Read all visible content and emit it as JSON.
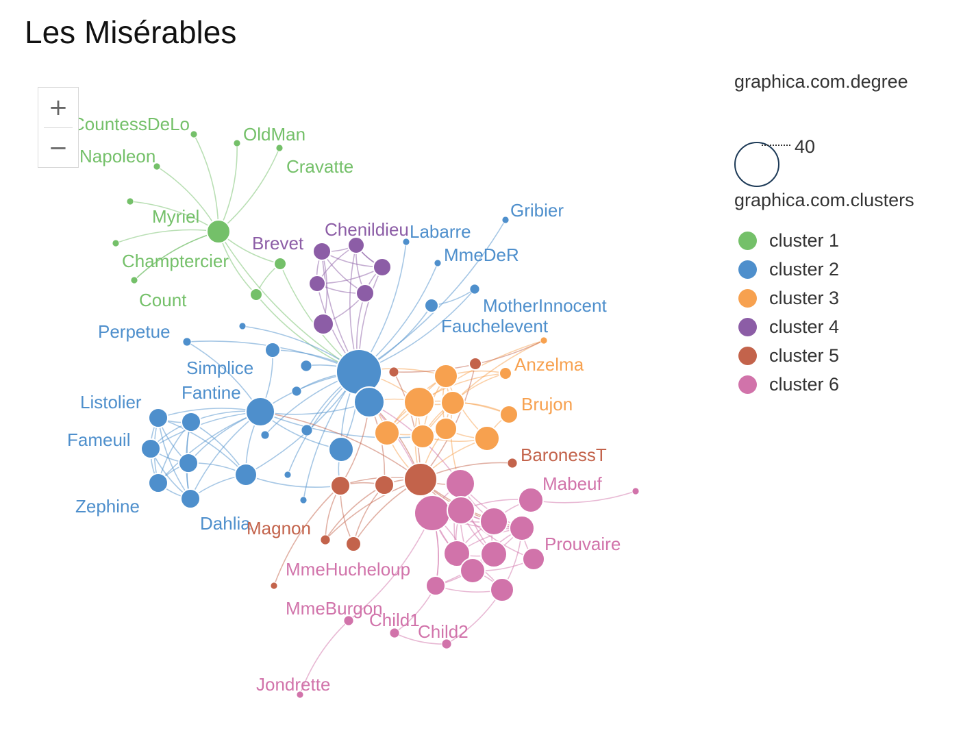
{
  "title": "Les Misérables",
  "zoom": {
    "in_label": "+",
    "out_label": "−"
  },
  "legend": {
    "size_title": "graphica.com.degree",
    "size_value": "40",
    "cluster_title": "graphica.com.clusters",
    "clusters": [
      {
        "label": "cluster 1",
        "color": "#74c069"
      },
      {
        "label": "cluster 2",
        "color": "#4e8fcc"
      },
      {
        "label": "cluster 3",
        "color": "#f7a14f"
      },
      {
        "label": "cluster 4",
        "color": "#8c5da6"
      },
      {
        "label": "cluster 5",
        "color": "#c3634b"
      },
      {
        "label": "cluster 6",
        "color": "#d173aa"
      }
    ]
  },
  "graph": {
    "nodes": [
      {
        "id": "g_hub",
        "c": 0,
        "label": ""
      },
      {
        "id": "g_cd",
        "c": 0,
        "label": "CountessDeLo"
      },
      {
        "id": "g_om",
        "c": 0,
        "label": "OldMan"
      },
      {
        "id": "g_cr",
        "c": 0,
        "label": "Cravatte"
      },
      {
        "id": "g_np",
        "c": 0,
        "label": "Napoleon"
      },
      {
        "id": "g_my",
        "c": 0,
        "label": "Myriel"
      },
      {
        "id": "g_x1",
        "c": 0,
        "label": ""
      },
      {
        "id": "g_ch",
        "c": 0,
        "label": "Champtercier"
      },
      {
        "id": "g_co",
        "c": 0,
        "label": "Count"
      },
      {
        "id": "g_a",
        "c": 0,
        "label": ""
      },
      {
        "id": "g_b",
        "c": 0,
        "label": ""
      },
      {
        "id": "p1",
        "c": 3,
        "label": ""
      },
      {
        "id": "p2",
        "c": 3,
        "label": ""
      },
      {
        "id": "p3",
        "c": 3,
        "label": ""
      },
      {
        "id": "p4",
        "c": 3,
        "label": ""
      },
      {
        "id": "p5",
        "c": 3,
        "label": ""
      },
      {
        "id": "p6",
        "c": 3,
        "label": "Brevet"
      },
      {
        "id": "p7",
        "c": 3,
        "label": "Chenildieu"
      },
      {
        "id": "b_hub",
        "c": 1,
        "label": ""
      },
      {
        "id": "b_2",
        "c": 1,
        "label": ""
      },
      {
        "id": "b_fan",
        "c": 1,
        "label": "Fantine"
      },
      {
        "id": "b_mid",
        "c": 1,
        "label": ""
      },
      {
        "id": "b_sim",
        "c": 1,
        "label": "Simplice"
      },
      {
        "id": "b_perp",
        "c": 1,
        "label": "Perpetue"
      },
      {
        "id": "b_s1",
        "c": 1,
        "label": ""
      },
      {
        "id": "b_s2",
        "c": 1,
        "label": ""
      },
      {
        "id": "b_s3",
        "c": 1,
        "label": ""
      },
      {
        "id": "b_s4",
        "c": 1,
        "label": ""
      },
      {
        "id": "b_s5",
        "c": 1,
        "label": ""
      },
      {
        "id": "b_s6",
        "c": 1,
        "label": ""
      },
      {
        "id": "b_s7",
        "c": 1,
        "label": ""
      },
      {
        "id": "b_lis",
        "c": 1,
        "label": "Listolier"
      },
      {
        "id": "b_t1",
        "c": 1,
        "label": ""
      },
      {
        "id": "b_fam",
        "c": 1,
        "label": "Fameuil"
      },
      {
        "id": "b_t2",
        "c": 1,
        "label": ""
      },
      {
        "id": "b_zep",
        "c": 1,
        "label": "Zephine"
      },
      {
        "id": "b_dah",
        "c": 1,
        "label": "Dahlia"
      },
      {
        "id": "b_t3",
        "c": 1,
        "label": ""
      },
      {
        "id": "b_fau",
        "c": 1,
        "label": "Fauchelevent"
      },
      {
        "id": "b_mi",
        "c": 1,
        "label": "MotherInnocent"
      },
      {
        "id": "b_mdr",
        "c": 1,
        "label": "MmeDeR"
      },
      {
        "id": "b_lab",
        "c": 1,
        "label": "Labarre"
      },
      {
        "id": "b_gri",
        "c": 1,
        "label": "Gribier"
      },
      {
        "id": "o1",
        "c": 2,
        "label": ""
      },
      {
        "id": "o2",
        "c": 2,
        "label": ""
      },
      {
        "id": "o3",
        "c": 2,
        "label": ""
      },
      {
        "id": "o4",
        "c": 2,
        "label": ""
      },
      {
        "id": "o5",
        "c": 2,
        "label": ""
      },
      {
        "id": "o6",
        "c": 2,
        "label": ""
      },
      {
        "id": "o7",
        "c": 2,
        "label": ""
      },
      {
        "id": "o8",
        "c": 2,
        "label": "Brujon"
      },
      {
        "id": "o9",
        "c": 2,
        "label": "Anzelma"
      },
      {
        "id": "o10",
        "c": 2,
        "label": ""
      },
      {
        "id": "r_hub",
        "c": 4,
        "label": ""
      },
      {
        "id": "r2",
        "c": 4,
        "label": ""
      },
      {
        "id": "r3",
        "c": 4,
        "label": ""
      },
      {
        "id": "r4",
        "c": 4,
        "label": ""
      },
      {
        "id": "r5",
        "c": 4,
        "label": ""
      },
      {
        "id": "r6",
        "c": 4,
        "label": ""
      },
      {
        "id": "r7",
        "c": 4,
        "label": ""
      },
      {
        "id": "r_bar",
        "c": 4,
        "label": "BaronessT"
      },
      {
        "id": "r_mag",
        "c": 4,
        "label": "Magnon"
      },
      {
        "id": "k1",
        "c": 5,
        "label": ""
      },
      {
        "id": "k2",
        "c": 5,
        "label": ""
      },
      {
        "id": "k3",
        "c": 5,
        "label": ""
      },
      {
        "id": "k4",
        "c": 5,
        "label": "Mabeuf"
      },
      {
        "id": "k5",
        "c": 5,
        "label": ""
      },
      {
        "id": "k6",
        "c": 5,
        "label": ""
      },
      {
        "id": "k7",
        "c": 5,
        "label": ""
      },
      {
        "id": "k8",
        "c": 5,
        "label": ""
      },
      {
        "id": "k9",
        "c": 5,
        "label": ""
      },
      {
        "id": "k10",
        "c": 5,
        "label": "Prouvaire"
      },
      {
        "id": "k11",
        "c": 5,
        "label": ""
      },
      {
        "id": "k12",
        "c": 5,
        "label": ""
      },
      {
        "id": "k13",
        "c": 5,
        "label": ""
      },
      {
        "id": "k_ext",
        "c": 5,
        "label": ""
      },
      {
        "id": "k_mhu",
        "c": 5,
        "label": "MmeHucheloup"
      },
      {
        "id": "k_mbu",
        "c": 5,
        "label": "MmeBurgon"
      },
      {
        "id": "k_c1",
        "c": 5,
        "label": "Child1"
      },
      {
        "id": "k_c2",
        "c": 5,
        "label": "Child2"
      },
      {
        "id": "k_jon",
        "c": 5,
        "label": "Jondrette"
      }
    ],
    "edges": [
      [
        "g_hub",
        "g_cd"
      ],
      [
        "g_hub",
        "g_om"
      ],
      [
        "g_hub",
        "g_cr"
      ],
      [
        "g_hub",
        "g_np"
      ],
      [
        "g_hub",
        "g_my"
      ],
      [
        "g_hub",
        "g_x1"
      ],
      [
        "g_hub",
        "g_ch"
      ],
      [
        "g_hub",
        "g_co"
      ],
      [
        "g_hub",
        "g_a"
      ],
      [
        "g_hub",
        "g_b"
      ],
      [
        "g_hub",
        "b_hub"
      ],
      [
        "g_a",
        "b_hub"
      ],
      [
        "g_b",
        "b_hub"
      ],
      [
        "g_a",
        "g_b"
      ],
      [
        "p1",
        "p2"
      ],
      [
        "p1",
        "p3"
      ],
      [
        "p1",
        "p4"
      ],
      [
        "p1",
        "p5"
      ],
      [
        "p2",
        "p3"
      ],
      [
        "p2",
        "p4"
      ],
      [
        "p2",
        "p5"
      ],
      [
        "p3",
        "p4"
      ],
      [
        "p3",
        "p5"
      ],
      [
        "p4",
        "p5"
      ],
      [
        "p1",
        "b_hub"
      ],
      [
        "p2",
        "b_hub"
      ],
      [
        "p3",
        "b_hub"
      ],
      [
        "p4",
        "b_hub"
      ],
      [
        "p5",
        "b_hub"
      ],
      [
        "p6",
        "p1"
      ],
      [
        "p7",
        "p2"
      ],
      [
        "p6",
        "p5"
      ],
      [
        "p7",
        "p4"
      ],
      [
        "b_hub",
        "b_2"
      ],
      [
        "b_hub",
        "b_fan"
      ],
      [
        "b_hub",
        "b_mid"
      ],
      [
        "b_hub",
        "b_sim"
      ],
      [
        "b_hub",
        "b_perp"
      ],
      [
        "b_hub",
        "b_s1"
      ],
      [
        "b_hub",
        "b_s2"
      ],
      [
        "b_hub",
        "b_s3"
      ],
      [
        "b_hub",
        "b_s4"
      ],
      [
        "b_hub",
        "b_s5"
      ],
      [
        "b_hub",
        "b_s6"
      ],
      [
        "b_hub",
        "b_s7"
      ],
      [
        "b_hub",
        "b_fau"
      ],
      [
        "b_hub",
        "b_mi"
      ],
      [
        "b_hub",
        "b_mdr"
      ],
      [
        "b_hub",
        "b_lab"
      ],
      [
        "b_hub",
        "b_gri"
      ],
      [
        "b_fau",
        "b_mi"
      ],
      [
        "b_fan",
        "b_sim"
      ],
      [
        "b_fan",
        "b_perp"
      ],
      [
        "b_fan",
        "b_lis"
      ],
      [
        "b_fan",
        "b_t1"
      ],
      [
        "b_fan",
        "b_fam"
      ],
      [
        "b_fan",
        "b_t2"
      ],
      [
        "b_fan",
        "b_zep"
      ],
      [
        "b_fan",
        "b_dah"
      ],
      [
        "b_fan",
        "b_t3"
      ],
      [
        "b_fan",
        "b_2"
      ],
      [
        "b_fan",
        "b_mid"
      ],
      [
        "b_lis",
        "b_t1"
      ],
      [
        "b_lis",
        "b_fam"
      ],
      [
        "b_lis",
        "b_t2"
      ],
      [
        "b_lis",
        "b_zep"
      ],
      [
        "b_lis",
        "b_dah"
      ],
      [
        "b_t1",
        "b_fam"
      ],
      [
        "b_t1",
        "b_t2"
      ],
      [
        "b_t1",
        "b_zep"
      ],
      [
        "b_t1",
        "b_dah"
      ],
      [
        "b_fam",
        "b_t2"
      ],
      [
        "b_fam",
        "b_zep"
      ],
      [
        "b_fam",
        "b_dah"
      ],
      [
        "b_t2",
        "b_zep"
      ],
      [
        "b_t2",
        "b_dah"
      ],
      [
        "b_zep",
        "b_dah"
      ],
      [
        "b_t3",
        "b_t1"
      ],
      [
        "b_t3",
        "b_t2"
      ],
      [
        "b_t3",
        "b_lis"
      ],
      [
        "b_t3",
        "b_dah"
      ],
      [
        "b_t3",
        "b_hub"
      ],
      [
        "b_mid",
        "b_hub"
      ],
      [
        "b_mid",
        "r3"
      ],
      [
        "o1",
        "o2"
      ],
      [
        "o1",
        "o3"
      ],
      [
        "o1",
        "o4"
      ],
      [
        "o1",
        "o5"
      ],
      [
        "o1",
        "o6"
      ],
      [
        "o1",
        "o7"
      ],
      [
        "o2",
        "o3"
      ],
      [
        "o2",
        "o4"
      ],
      [
        "o2",
        "o5"
      ],
      [
        "o3",
        "o5"
      ],
      [
        "o3",
        "o6"
      ],
      [
        "o4",
        "o6"
      ],
      [
        "o5",
        "o7"
      ],
      [
        "o6",
        "o7"
      ],
      [
        "o8",
        "o2"
      ],
      [
        "o8",
        "o3"
      ],
      [
        "o8",
        "o7"
      ],
      [
        "o9",
        "o1"
      ],
      [
        "o9",
        "o2"
      ],
      [
        "o9",
        "o3"
      ],
      [
        "o10",
        "o5"
      ],
      [
        "o1",
        "b_hub"
      ],
      [
        "o2",
        "b_hub"
      ],
      [
        "o4",
        "b_2"
      ],
      [
        "o2",
        "b_2"
      ],
      [
        "o6",
        "r_hub"
      ],
      [
        "o4",
        "r_hub"
      ],
      [
        "o2",
        "r_hub"
      ],
      [
        "o7",
        "r_hub"
      ],
      [
        "o3",
        "k1"
      ],
      [
        "o10",
        "o4"
      ],
      [
        "b_fan",
        "o5"
      ],
      [
        "r_hub",
        "r2"
      ],
      [
        "r_hub",
        "r3"
      ],
      [
        "r_hub",
        "r4"
      ],
      [
        "r_hub",
        "r5"
      ],
      [
        "r_hub",
        "r6"
      ],
      [
        "r_hub",
        "r7"
      ],
      [
        "r2",
        "r3"
      ],
      [
        "r2",
        "r4"
      ],
      [
        "r2",
        "r5"
      ],
      [
        "r3",
        "r4"
      ],
      [
        "r3",
        "r5"
      ],
      [
        "r3",
        "r_mag"
      ],
      [
        "r_bar",
        "r_hub"
      ],
      [
        "r_hub",
        "b_2"
      ],
      [
        "r2",
        "b_2"
      ],
      [
        "r3",
        "b_2"
      ],
      [
        "r_hub",
        "k1"
      ],
      [
        "r_hub",
        "k2"
      ],
      [
        "r_hub",
        "k3"
      ],
      [
        "r_hub",
        "k5"
      ],
      [
        "r_hub",
        "k6"
      ],
      [
        "r_hub",
        "b_fan"
      ],
      [
        "b_t3",
        "r3"
      ],
      [
        "r6",
        "o10"
      ],
      [
        "k1",
        "k2"
      ],
      [
        "k1",
        "k3"
      ],
      [
        "k1",
        "k5"
      ],
      [
        "k1",
        "k6"
      ],
      [
        "k1",
        "k7"
      ],
      [
        "k1",
        "k8"
      ],
      [
        "k1",
        "k9"
      ],
      [
        "k2",
        "k3"
      ],
      [
        "k2",
        "k5"
      ],
      [
        "k2",
        "k6"
      ],
      [
        "k2",
        "k7"
      ],
      [
        "k2",
        "k9"
      ],
      [
        "k3",
        "k5"
      ],
      [
        "k3",
        "k6"
      ],
      [
        "k3",
        "k7"
      ],
      [
        "k3",
        "k10"
      ],
      [
        "k3",
        "k8"
      ],
      [
        "k5",
        "k6"
      ],
      [
        "k5",
        "k7"
      ],
      [
        "k5",
        "k8"
      ],
      [
        "k6",
        "k7"
      ],
      [
        "k6",
        "k9"
      ],
      [
        "k6",
        "k10"
      ],
      [
        "k7",
        "k8"
      ],
      [
        "k7",
        "k9"
      ],
      [
        "k8",
        "k9"
      ],
      [
        "k9",
        "k10"
      ],
      [
        "k4",
        "k5"
      ],
      [
        "k4",
        "k3"
      ],
      [
        "k4",
        "k_ext"
      ],
      [
        "k11",
        "k12"
      ],
      [
        "k11",
        "k2"
      ],
      [
        "k11",
        "k6"
      ],
      [
        "k12",
        "k7"
      ],
      [
        "k12",
        "k13"
      ],
      [
        "k13",
        "k2"
      ],
      [
        "k13",
        "k9"
      ],
      [
        "k_mhu",
        "k2"
      ],
      [
        "k_mbu",
        "k2"
      ],
      [
        "k_mbu",
        "k_jon"
      ],
      [
        "k_c1",
        "k_c2"
      ],
      [
        "k_c1",
        "k_mhu"
      ],
      [
        "k_c2",
        "k12"
      ],
      [
        "k11",
        "k8"
      ],
      [
        "k12",
        "k6"
      ],
      [
        "k13",
        "k9"
      ],
      [
        "k1",
        "b_2"
      ],
      [
        "k2",
        "b_2"
      ]
    ]
  }
}
